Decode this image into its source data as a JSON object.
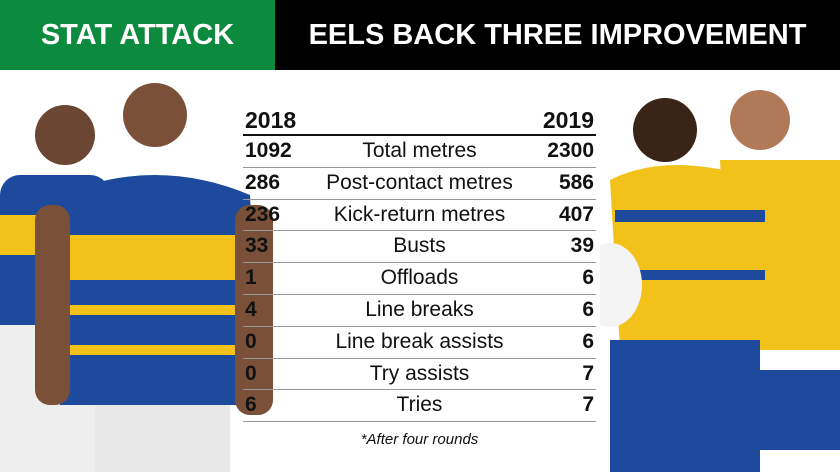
{
  "header": {
    "left": "STAT ATTACK",
    "right": "EELS BACK THREE IMPROVEMENT"
  },
  "colors": {
    "green": "#0c8a3e",
    "black": "#000000",
    "jersey_blue": "#1d4a9c",
    "jersey_yellow": "#f2c21b"
  },
  "chart_data": {
    "type": "table",
    "columns": [
      "2018",
      "",
      "2019"
    ],
    "rows": [
      {
        "stat": "Total metres",
        "y2018": "1092",
        "y2019": "2300"
      },
      {
        "stat": "Post-contact metres",
        "y2018": "286",
        "y2019": "586"
      },
      {
        "stat": "Kick-return metres",
        "y2018": "236",
        "y2019": "407"
      },
      {
        "stat": "Busts",
        "y2018": "33",
        "y2019": "39"
      },
      {
        "stat": "Offloads",
        "y2018": "1",
        "y2019": "6"
      },
      {
        "stat": "Line breaks",
        "y2018": "4",
        "y2019": "6"
      },
      {
        "stat": "Line break assists",
        "y2018": "0",
        "y2019": "6"
      },
      {
        "stat": "Try assists",
        "y2018": "0",
        "y2019": "7"
      },
      {
        "stat": "Tries",
        "y2018": "6",
        "y2019": "7"
      }
    ],
    "footnote": "*After four rounds"
  }
}
